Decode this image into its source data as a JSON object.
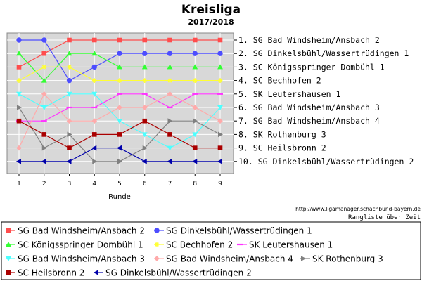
{
  "chart_data": {
    "type": "line",
    "title": "Kreisliga",
    "subtitle": "2017/2018",
    "xlabel": "Runde",
    "ylabel": "",
    "x": [
      1,
      2,
      3,
      4,
      5,
      6,
      7,
      8,
      9
    ],
    "ylim": [
      1,
      10
    ],
    "y_inverted": true,
    "grid": true,
    "legend_position": "bottom",
    "right_labels": [
      "1. SG Bad Windsheim/Ansbach 2",
      "2. SG Dinkelsbühl/Wassertrüdingen 1",
      "3. SC Königsspringer Dombühl 1",
      "4. SC Bechhofen 2",
      "5. SK Leutershausen 1",
      "6. SG Bad Windsheim/Ansbach 3",
      "7. SG Bad Windsheim/Ansbach 4",
      "8. SK Rothenburg 3",
      "9. SC Heilsbronn 2",
      "10. SG Dinkelsbühl/Wassertrüdingen 2"
    ],
    "series": [
      {
        "name": "SG Bad Windsheim/Ansbach 2",
        "color": "#ff4d4d",
        "marker": "square",
        "values": [
          3,
          2,
          1,
          1,
          1,
          1,
          1,
          1,
          1
        ]
      },
      {
        "name": "SG Dinkelsbühl/Wassertrüdingen 1",
        "color": "#4d4dff",
        "marker": "circle",
        "values": [
          1,
          1,
          4,
          3,
          2,
          2,
          2,
          2,
          2
        ]
      },
      {
        "name": "SC Königsspringer Dombühl 1",
        "color": "#33ff33",
        "marker": "triangle-up",
        "values": [
          2,
          4,
          2,
          2,
          3,
          3,
          3,
          3,
          3
        ]
      },
      {
        "name": "SC Bechhofen 2",
        "color": "#ffff33",
        "marker": "star",
        "values": [
          4,
          3,
          3,
          4,
          4,
          4,
          4,
          4,
          4
        ]
      },
      {
        "name": "SK Leutershausen 1",
        "color": "#ff33ff",
        "marker": "dash",
        "values": [
          7,
          7,
          6,
          6,
          5,
          5,
          6,
          5,
          5
        ]
      },
      {
        "name": "SG Bad Windsheim/Ansbach 3",
        "color": "#4dffff",
        "marker": "triangle-down",
        "values": [
          5,
          6,
          5,
          5,
          7,
          8,
          9,
          8,
          6
        ]
      },
      {
        "name": "SG Bad Windsheim/Ansbach 4",
        "color": "#ffaaaa",
        "marker": "diamond",
        "values": [
          9,
          5,
          7,
          7,
          6,
          6,
          5,
          6,
          7
        ]
      },
      {
        "name": "SK Rothenburg 3",
        "color": "#808080",
        "marker": "triangle-right",
        "values": [
          6,
          9,
          8,
          10,
          10,
          9,
          7,
          7,
          8
        ]
      },
      {
        "name": "SC Heilsbronn 2",
        "color": "#aa0000",
        "marker": "square",
        "values": [
          7,
          8,
          9,
          8,
          8,
          7,
          8,
          9,
          9
        ]
      },
      {
        "name": "SG Dinkelsbühl/Wassertrüdingen 2",
        "color": "#0000aa",
        "marker": "triangle-left",
        "values": [
          10,
          10,
          10,
          9,
          9,
          10,
          10,
          10,
          10
        ]
      }
    ],
    "source_url": "http://www.ligamanager.schachbund-bayern.de",
    "caption": "Rangliste über Zeit"
  }
}
